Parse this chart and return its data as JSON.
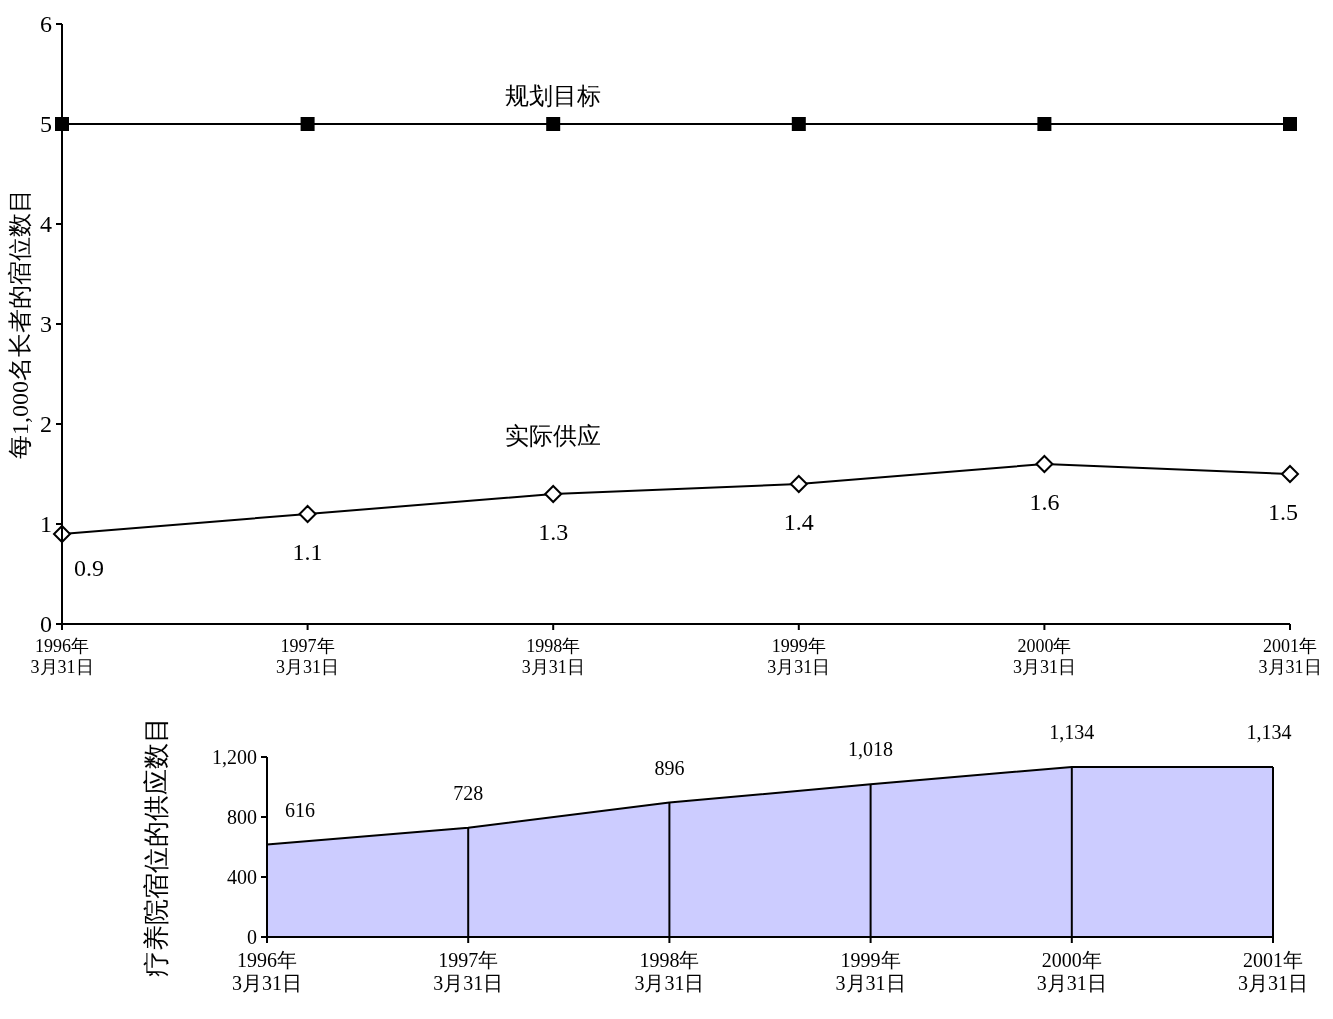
{
  "chart_data": [
    {
      "type": "line",
      "ylabel": "每1,000名长者的宿位数目",
      "categories": [
        "1996年\n3月31日",
        "1997年\n3月31日",
        "1998年\n3月31日",
        "1999年\n3月31日",
        "2000年\n3月31日",
        "2001年\n3月31日"
      ],
      "ylim": [
        0,
        6
      ],
      "yticks": [
        0,
        1,
        2,
        3,
        4,
        5,
        6
      ],
      "grid": false,
      "line_style": "solid",
      "series": [
        {
          "name": "规划目标",
          "color": "#000000",
          "marker": "square",
          "values": [
            5,
            5,
            5,
            5,
            5,
            5
          ]
        },
        {
          "name": "实际供应",
          "color": "#000000",
          "marker": "diamond",
          "values": [
            0.9,
            1.1,
            1.3,
            1.4,
            1.6,
            1.5
          ],
          "value_labels": [
            "0.9",
            "1.1",
            "1.3",
            "1.4",
            "1.6",
            "1.5"
          ]
        }
      ]
    },
    {
      "type": "area",
      "ylabel": "疗养院宿位的供应数目",
      "categories": [
        "1996年\n3月31日",
        "1997年\n3月31日",
        "1998年\n3月31日",
        "1999年\n3月31日",
        "2000年\n3月31日",
        "2001年\n3月31日"
      ],
      "ylim": [
        0,
        1200
      ],
      "yticks": [
        0,
        {
          "value": 400,
          "label": "400"
        },
        {
          "value": 800,
          "label": "800"
        },
        {
          "value": 1200,
          "label": "1,200"
        }
      ],
      "grid": "x",
      "series": [
        {
          "color": "#ccccff",
          "values": [
            616,
            728,
            896,
            1018,
            1134,
            1134
          ],
          "value_labels": [
            "616",
            "728",
            "896",
            "1,018",
            "1,134",
            "1,134"
          ]
        }
      ]
    }
  ]
}
